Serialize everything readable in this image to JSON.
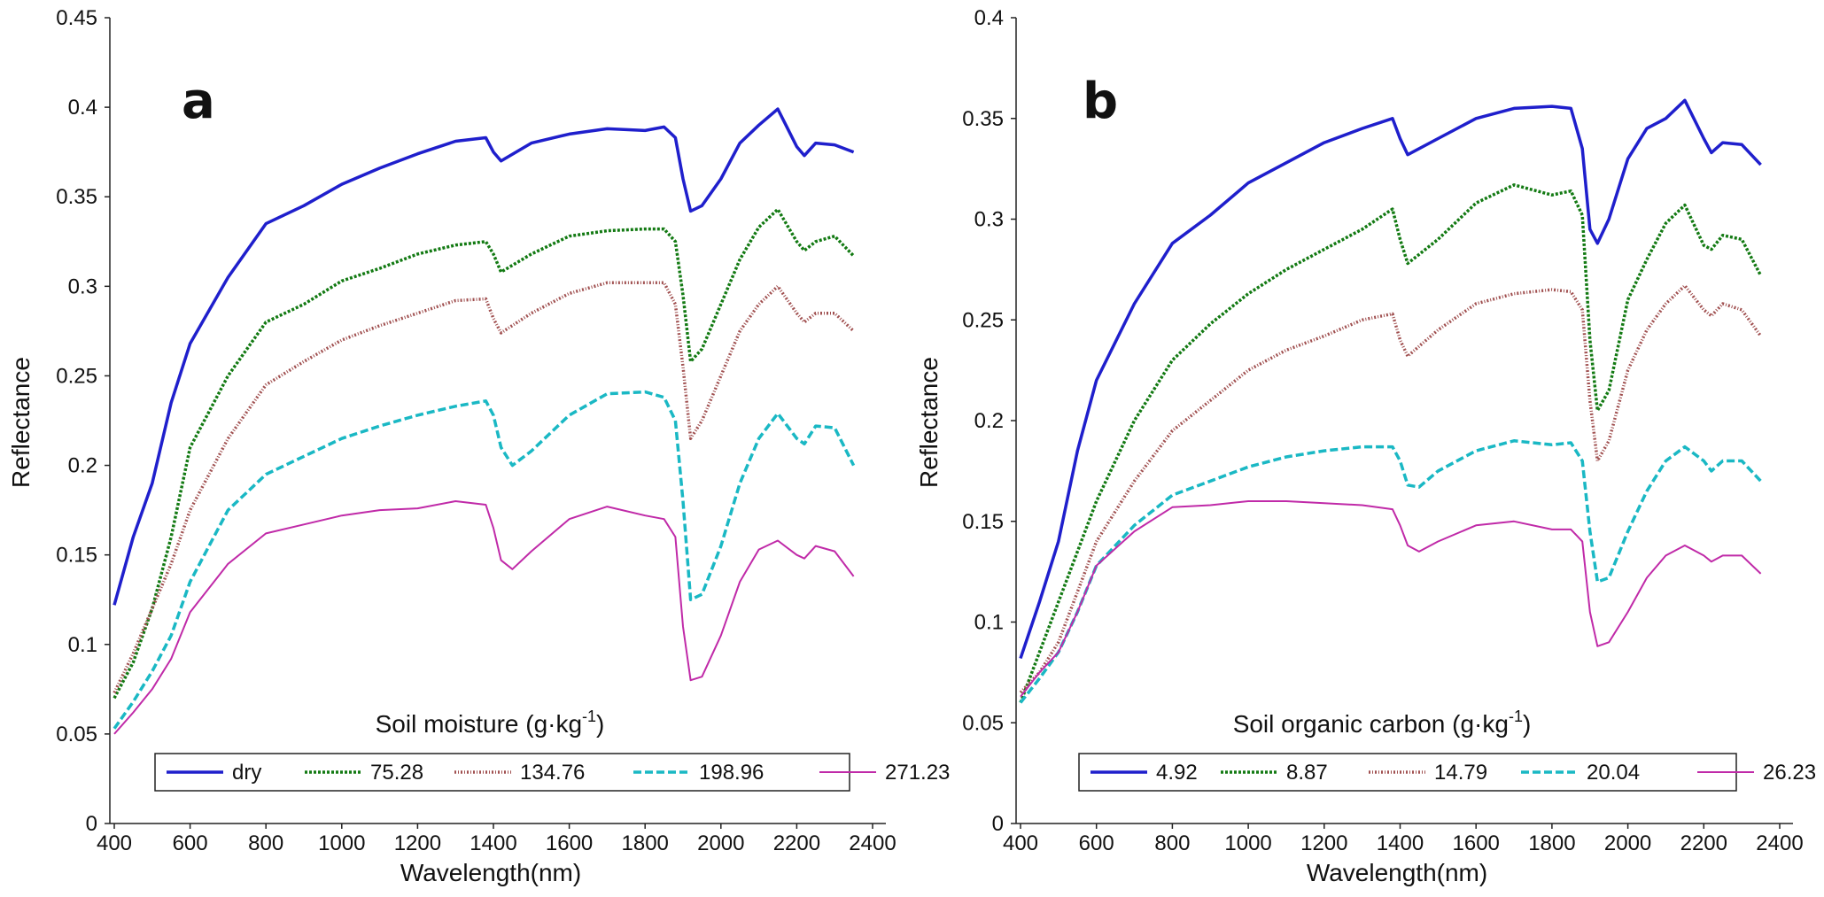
{
  "chart_data": [
    {
      "type": "line",
      "panel_label": "a",
      "xlabel": "Wavelength(nm)",
      "ylabel": "Reflectance",
      "xlim": [
        400,
        2400
      ],
      "ylim": [
        0,
        0.45
      ],
      "x_ticks": [
        400,
        600,
        800,
        1000,
        1200,
        1400,
        1600,
        1800,
        2000,
        2200,
        2400
      ],
      "x_tick_labels": [
        "400",
        "600",
        "800",
        "1000",
        "1200",
        "1400",
        "1600",
        "1800",
        "2000",
        "2200",
        "2400"
      ],
      "y_ticks": [
        0,
        0.05,
        0.1,
        0.15,
        0.2,
        0.25,
        0.3,
        0.35,
        0.4,
        0.45
      ],
      "y_tick_labels": [
        "0",
        "0.05",
        "0.1",
        "0.15",
        "0.2",
        "0.25",
        "0.3",
        "0.35",
        "0.4",
        "0.45"
      ],
      "legend": {
        "title_main": "Soil moisture (g·kg",
        "title_sup": "-1",
        "title_close": ")",
        "placement": "bottom-center"
      },
      "series": [
        {
          "name": "dry",
          "color": "#1f1fcc",
          "style": "solid",
          "x": [
            400,
            450,
            500,
            550,
            600,
            700,
            800,
            900,
            1000,
            1100,
            1200,
            1300,
            1380,
            1400,
            1420,
            1500,
            1600,
            1700,
            1800,
            1850,
            1880,
            1900,
            1920,
            1950,
            2000,
            2050,
            2100,
            2150,
            2200,
            2220,
            2250,
            2300,
            2350
          ],
          "values": [
            0.122,
            0.16,
            0.19,
            0.235,
            0.268,
            0.305,
            0.335,
            0.345,
            0.357,
            0.366,
            0.374,
            0.381,
            0.383,
            0.375,
            0.37,
            0.38,
            0.385,
            0.388,
            0.387,
            0.389,
            0.383,
            0.36,
            0.342,
            0.345,
            0.36,
            0.38,
            0.39,
            0.399,
            0.378,
            0.373,
            0.38,
            0.379,
            0.375
          ]
        },
        {
          "name": "75.28",
          "color": "#137a13",
          "style": "dotted",
          "x": [
            400,
            450,
            500,
            550,
            600,
            700,
            800,
            900,
            1000,
            1100,
            1200,
            1300,
            1380,
            1400,
            1420,
            1500,
            1600,
            1700,
            1800,
            1850,
            1880,
            1900,
            1920,
            1950,
            2000,
            2050,
            2100,
            2150,
            2200,
            2220,
            2250,
            2300,
            2350
          ],
          "values": [
            0.07,
            0.09,
            0.12,
            0.16,
            0.21,
            0.25,
            0.28,
            0.29,
            0.303,
            0.31,
            0.318,
            0.323,
            0.325,
            0.318,
            0.308,
            0.318,
            0.328,
            0.331,
            0.332,
            0.332,
            0.325,
            0.295,
            0.258,
            0.265,
            0.29,
            0.315,
            0.333,
            0.343,
            0.325,
            0.32,
            0.325,
            0.328,
            0.317
          ]
        },
        {
          "name": "134.76",
          "color": "#a05050",
          "style": "dashdot",
          "x": [
            400,
            450,
            500,
            550,
            600,
            700,
            800,
            900,
            1000,
            1100,
            1200,
            1300,
            1380,
            1400,
            1420,
            1500,
            1600,
            1700,
            1800,
            1850,
            1880,
            1900,
            1920,
            1950,
            2000,
            2050,
            2100,
            2150,
            2200,
            2220,
            2250,
            2300,
            2350
          ],
          "values": [
            0.073,
            0.095,
            0.12,
            0.145,
            0.175,
            0.215,
            0.245,
            0.258,
            0.27,
            0.278,
            0.285,
            0.292,
            0.293,
            0.282,
            0.274,
            0.285,
            0.296,
            0.302,
            0.302,
            0.302,
            0.29,
            0.255,
            0.215,
            0.225,
            0.25,
            0.275,
            0.29,
            0.3,
            0.285,
            0.28,
            0.285,
            0.285,
            0.275
          ]
        },
        {
          "name": "198.96",
          "color": "#1ab8c4",
          "style": "dashed",
          "x": [
            400,
            450,
            500,
            550,
            600,
            700,
            800,
            900,
            1000,
            1100,
            1200,
            1300,
            1380,
            1400,
            1420,
            1450,
            1500,
            1600,
            1700,
            1800,
            1850,
            1880,
            1900,
            1920,
            1950,
            2000,
            2050,
            2100,
            2150,
            2200,
            2220,
            2250,
            2300,
            2350
          ],
          "values": [
            0.053,
            0.068,
            0.085,
            0.105,
            0.135,
            0.175,
            0.195,
            0.205,
            0.215,
            0.222,
            0.228,
            0.233,
            0.236,
            0.228,
            0.21,
            0.2,
            0.208,
            0.228,
            0.24,
            0.241,
            0.238,
            0.225,
            0.18,
            0.125,
            0.128,
            0.155,
            0.19,
            0.215,
            0.229,
            0.215,
            0.212,
            0.222,
            0.221,
            0.2
          ]
        },
        {
          "name": "271.23",
          "color": "#c02aa8",
          "style": "solid",
          "x": [
            400,
            450,
            500,
            550,
            600,
            700,
            800,
            900,
            1000,
            1100,
            1200,
            1300,
            1380,
            1400,
            1420,
            1450,
            1500,
            1600,
            1700,
            1800,
            1850,
            1880,
            1900,
            1920,
            1950,
            2000,
            2050,
            2100,
            2150,
            2200,
            2220,
            2250,
            2300,
            2350
          ],
          "values": [
            0.05,
            0.062,
            0.075,
            0.092,
            0.118,
            0.145,
            0.162,
            0.167,
            0.172,
            0.175,
            0.176,
            0.18,
            0.178,
            0.165,
            0.147,
            0.142,
            0.152,
            0.17,
            0.177,
            0.172,
            0.17,
            0.16,
            0.11,
            0.08,
            0.082,
            0.105,
            0.135,
            0.153,
            0.158,
            0.15,
            0.148,
            0.155,
            0.152,
            0.138
          ]
        }
      ]
    },
    {
      "type": "line",
      "panel_label": "b",
      "xlabel": "Wavelength(nm)",
      "ylabel": "Reflectance",
      "xlim": [
        400,
        2400
      ],
      "ylim": [
        0,
        0.4
      ],
      "x_ticks": [
        400,
        600,
        800,
        1000,
        1200,
        1400,
        1600,
        1800,
        2000,
        2200,
        2400
      ],
      "x_tick_labels": [
        "400",
        "600",
        "800",
        "1000",
        "1200",
        "1400",
        "1600",
        "1800",
        "2000",
        "2200",
        "2400"
      ],
      "y_ticks": [
        0,
        0.05,
        0.1,
        0.15,
        0.2,
        0.25,
        0.3,
        0.35,
        0.4
      ],
      "y_tick_labels": [
        "0",
        "0.05",
        "0.1",
        "0.15",
        "0.2",
        "0.25",
        "0.3",
        "0.35",
        "0.4"
      ],
      "legend": {
        "title_main": "Soil organic carbon (g·kg",
        "title_sup": "-1",
        "title_close": ")",
        "placement": "bottom-center"
      },
      "series": [
        {
          "name": "4.92",
          "color": "#1f1fcc",
          "style": "solid",
          "x": [
            400,
            450,
            500,
            550,
            600,
            700,
            800,
            900,
            1000,
            1100,
            1200,
            1300,
            1380,
            1400,
            1420,
            1500,
            1600,
            1700,
            1800,
            1850,
            1880,
            1900,
            1920,
            1950,
            2000,
            2050,
            2100,
            2150,
            2200,
            2220,
            2250,
            2300,
            2350
          ],
          "values": [
            0.082,
            0.11,
            0.14,
            0.185,
            0.22,
            0.258,
            0.288,
            0.302,
            0.318,
            0.328,
            0.338,
            0.345,
            0.35,
            0.34,
            0.332,
            0.34,
            0.35,
            0.355,
            0.356,
            0.355,
            0.335,
            0.295,
            0.288,
            0.3,
            0.33,
            0.345,
            0.35,
            0.359,
            0.34,
            0.333,
            0.338,
            0.337,
            0.327
          ]
        },
        {
          "name": "8.87",
          "color": "#137a13",
          "style": "dotted",
          "x": [
            400,
            450,
            500,
            550,
            600,
            700,
            800,
            900,
            1000,
            1100,
            1200,
            1300,
            1380,
            1400,
            1420,
            1500,
            1600,
            1700,
            1800,
            1850,
            1880,
            1900,
            1920,
            1950,
            2000,
            2050,
            2100,
            2150,
            2200,
            2220,
            2250,
            2300,
            2350
          ],
          "values": [
            0.06,
            0.085,
            0.11,
            0.135,
            0.16,
            0.2,
            0.23,
            0.248,
            0.263,
            0.275,
            0.285,
            0.295,
            0.305,
            0.29,
            0.278,
            0.29,
            0.308,
            0.317,
            0.312,
            0.314,
            0.302,
            0.24,
            0.205,
            0.215,
            0.26,
            0.28,
            0.298,
            0.307,
            0.287,
            0.285,
            0.292,
            0.29,
            0.272
          ]
        },
        {
          "name": "14.79",
          "color": "#a05050",
          "style": "dashdot",
          "x": [
            400,
            450,
            500,
            550,
            600,
            700,
            800,
            900,
            1000,
            1100,
            1200,
            1300,
            1380,
            1400,
            1420,
            1500,
            1600,
            1700,
            1800,
            1850,
            1880,
            1900,
            1920,
            1950,
            2000,
            2050,
            2100,
            2150,
            2200,
            2220,
            2250,
            2300,
            2350
          ],
          "values": [
            0.065,
            0.075,
            0.09,
            0.115,
            0.14,
            0.17,
            0.195,
            0.21,
            0.225,
            0.235,
            0.242,
            0.25,
            0.253,
            0.24,
            0.232,
            0.245,
            0.258,
            0.263,
            0.265,
            0.264,
            0.255,
            0.21,
            0.18,
            0.19,
            0.225,
            0.245,
            0.258,
            0.267,
            0.255,
            0.252,
            0.258,
            0.255,
            0.242
          ]
        },
        {
          "name": "20.04",
          "color": "#1ab8c4",
          "style": "dashed",
          "x": [
            400,
            450,
            500,
            550,
            600,
            700,
            800,
            900,
            1000,
            1100,
            1200,
            1300,
            1380,
            1400,
            1420,
            1450,
            1500,
            1600,
            1700,
            1800,
            1850,
            1880,
            1900,
            1920,
            1950,
            2000,
            2050,
            2100,
            2150,
            2200,
            2220,
            2250,
            2300,
            2350
          ],
          "values": [
            0.06,
            0.072,
            0.085,
            0.105,
            0.128,
            0.148,
            0.163,
            0.17,
            0.177,
            0.182,
            0.185,
            0.187,
            0.187,
            0.18,
            0.168,
            0.167,
            0.175,
            0.185,
            0.19,
            0.188,
            0.189,
            0.18,
            0.145,
            0.12,
            0.122,
            0.145,
            0.165,
            0.18,
            0.187,
            0.18,
            0.175,
            0.18,
            0.18,
            0.17
          ]
        },
        {
          "name": "26.23",
          "color": "#c02aa8",
          "style": "solid",
          "x": [
            400,
            450,
            500,
            550,
            600,
            700,
            800,
            900,
            1000,
            1100,
            1200,
            1300,
            1380,
            1400,
            1420,
            1450,
            1500,
            1600,
            1700,
            1800,
            1850,
            1880,
            1900,
            1920,
            1950,
            2000,
            2050,
            2100,
            2150,
            2200,
            2220,
            2250,
            2300,
            2350
          ],
          "values": [
            0.063,
            0.075,
            0.085,
            0.105,
            0.128,
            0.145,
            0.157,
            0.158,
            0.16,
            0.16,
            0.159,
            0.158,
            0.156,
            0.148,
            0.138,
            0.135,
            0.14,
            0.148,
            0.15,
            0.146,
            0.146,
            0.14,
            0.105,
            0.088,
            0.09,
            0.105,
            0.122,
            0.133,
            0.138,
            0.133,
            0.13,
            0.133,
            0.133,
            0.124
          ]
        }
      ]
    }
  ]
}
